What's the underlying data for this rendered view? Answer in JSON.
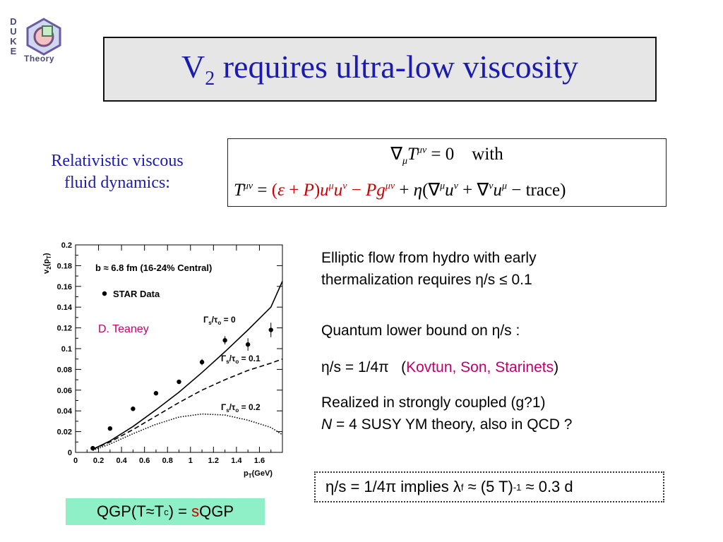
{
  "logo": {
    "letters": [
      "D",
      "U",
      "K",
      "E"
    ],
    "word": "Theory",
    "icon": "duke-qcd-logo-icon"
  },
  "title": {
    "main": "V",
    "sub": "2",
    "rest": " requires ultra-low viscosity"
  },
  "caption": {
    "line1": "Relativistic viscous",
    "line2": "fluid dynamics:"
  },
  "equations": {
    "with": "with",
    "trace": "trace"
  },
  "chart_data": {
    "type": "scatter",
    "xlabel": "p_T(GeV)",
    "ylabel": "v_2(p_T)",
    "xlim": [
      0,
      1.8
    ],
    "ylim": [
      0,
      0.2
    ],
    "xticks": [
      "0",
      "0.2",
      "0.4",
      "0.6",
      "0.8",
      "1",
      "1.2",
      "1.4",
      "1.6"
    ],
    "yticks": [
      "0",
      "0.02",
      "0.04",
      "0.06",
      "0.08",
      "0.1",
      "0.12",
      "0.14",
      "0.16",
      "0.18",
      "0.2"
    ],
    "annotation1": "b ≈ 6.8 fm (16-24% Central)",
    "legend": "STAR Data",
    "credit": "D. Teaney",
    "series": [
      {
        "name": "STAR Data",
        "x": [
          0.15,
          0.3,
          0.5,
          0.7,
          0.9,
          1.1,
          1.3,
          1.5,
          1.7
        ],
        "y": [
          0.004,
          0.023,
          0.042,
          0.057,
          0.068,
          0.087,
          0.108,
          0.104,
          0.118
        ],
        "err": [
          0.002,
          0.002,
          0.002,
          0.002,
          0.002,
          0.003,
          0.004,
          0.006,
          0.007
        ]
      },
      {
        "name": "Γs/τo = 0",
        "x": [
          0.15,
          0.3,
          0.5,
          0.7,
          0.9,
          1.1,
          1.3,
          1.5,
          1.7,
          1.8
        ],
        "y": [
          0.003,
          0.011,
          0.025,
          0.041,
          0.058,
          0.077,
          0.097,
          0.118,
          0.14,
          0.165
        ]
      },
      {
        "name": "Γs/τo = 0.1",
        "x": [
          0.15,
          0.3,
          0.5,
          0.7,
          0.9,
          1.1,
          1.3,
          1.5,
          1.7,
          1.8
        ],
        "y": [
          0.003,
          0.01,
          0.022,
          0.035,
          0.048,
          0.06,
          0.07,
          0.079,
          0.086,
          0.09
        ]
      },
      {
        "name": "Γs/τo = 0.2",
        "x": [
          0.15,
          0.3,
          0.5,
          0.7,
          0.9,
          1.1,
          1.3,
          1.5,
          1.7,
          1.8
        ],
        "y": [
          0.002,
          0.008,
          0.018,
          0.027,
          0.034,
          0.037,
          0.036,
          0.031,
          0.024,
          0.017
        ]
      }
    ],
    "curve_labels": [
      {
        "prefix": "Γ",
        "sub1": "s",
        "mid": "/τ",
        "sub2": "o",
        "val": " = 0"
      },
      {
        "prefix": "Γ",
        "sub1": "s",
        "mid": "/τ",
        "sub2": "o",
        "val": " = 0.1"
      },
      {
        "prefix": "Γ",
        "sub1": "s",
        "mid": "/τ",
        "sub2": "o",
        "val": " = 0.2"
      }
    ]
  },
  "right": {
    "p1_line1": "Elliptic flow from hydro with early",
    "p1_line2": "thermalization requires η/s ≤ 0.1",
    "p2": "Quantum lower bound on η/s :",
    "p3_a": "η/s = 1/4π   (",
    "p3_link": "Kovtun, Son, Starinets",
    "p3_b": ")",
    "p4_line1": "Realized in strongly coupled (g?1)",
    "p4_N": "N",
    "p4_line2": " = 4 SUSY YM theory, also in QCD ?"
  },
  "bottom_box": {
    "a": "η/s = 1/4π implies λ",
    "sub": "f",
    "b": " ≈ (5 T)",
    "sup": "-1",
    "c": " ≈ 0.3 d"
  },
  "qgp": {
    "a": "QGP(T≈T",
    "sub": "c",
    "b": ") = ",
    "s": "s",
    "c": "QGP"
  },
  "colors": {
    "title_blue": "#1b1bb0",
    "red": "#cc0000",
    "magenta": "#c0006c",
    "qgp_bg": "#8ff0c8",
    "title_bg": "#e6e6e6"
  }
}
